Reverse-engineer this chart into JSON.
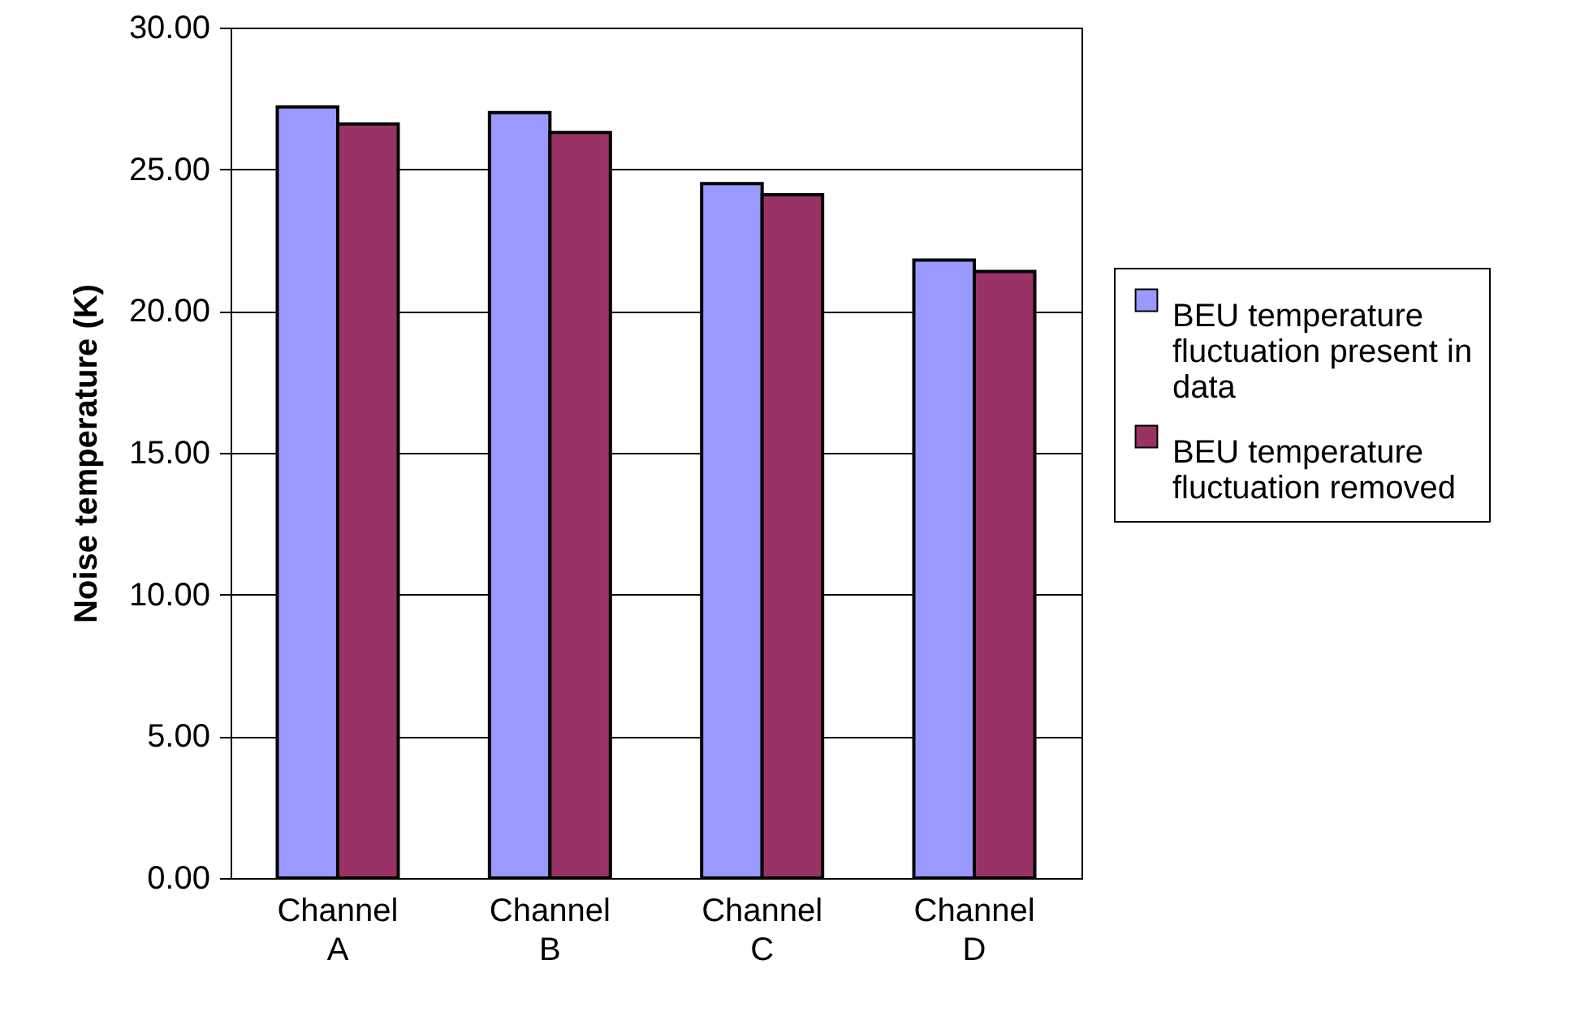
{
  "chart_data": {
    "type": "bar",
    "ylabel": "Noise temperature (K)",
    "categories": [
      "Channel A",
      "Channel B",
      "Channel C",
      "Channel D"
    ],
    "series": [
      {
        "name": "BEU temperature fluctuation present in data",
        "color": "#9999ff",
        "values": [
          27.2,
          27.0,
          24.5,
          21.8
        ]
      },
      {
        "name": "BEU temperature fluctuation removed",
        "color": "#993366",
        "values": [
          26.6,
          26.3,
          24.1,
          21.4
        ]
      }
    ],
    "ylim": [
      0,
      30
    ],
    "yticks": [
      {
        "value": 0,
        "label": "0.00"
      },
      {
        "value": 5,
        "label": "5.00"
      },
      {
        "value": 10,
        "label": "10.00"
      },
      {
        "value": 15,
        "label": "15.00"
      },
      {
        "value": 20,
        "label": "20.00"
      },
      {
        "value": 25,
        "label": "25.00"
      },
      {
        "value": 30,
        "label": "30.00"
      }
    ],
    "grid": "y",
    "legend": "right"
  }
}
